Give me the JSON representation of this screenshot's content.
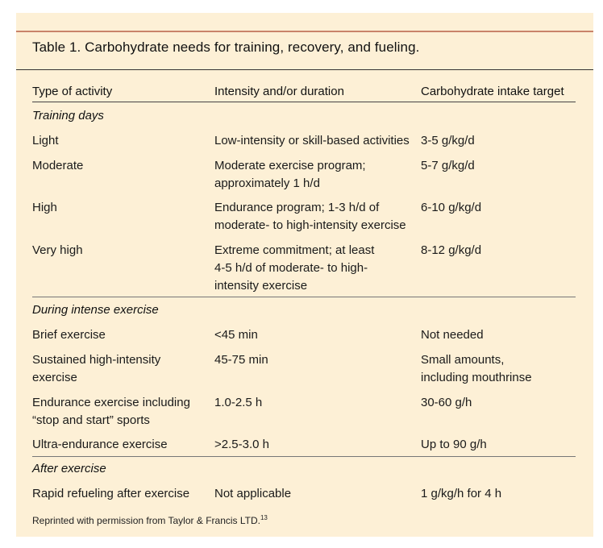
{
  "table": {
    "title": "Table 1. Carbohydrate needs for training, recovery, and fueling.",
    "columns": [
      "Type of activity",
      "Intensity and/or duration",
      "Carbohydrate intake target"
    ],
    "sections": [
      {
        "name": "Training days",
        "rows": [
          {
            "activity": "Light",
            "intensity": "Low-intensity or skill-based activities",
            "target": "3-5 g/kg/d"
          },
          {
            "activity": "Moderate",
            "intensity": "Moderate exercise program;\napproximately 1 h/d",
            "target": "5-7 g/kg/d"
          },
          {
            "activity": "High",
            "intensity": "Endurance program; 1-3 h/d of\nmoderate- to high-intensity exercise",
            "target": "6-10 g/kg/d"
          },
          {
            "activity": "Very high",
            "intensity": "Extreme commitment; at least\n4-5 h/d of moderate- to high-\nintensity exercise",
            "target": "8-12 g/kg/d"
          }
        ]
      },
      {
        "name": "During intense exercise",
        "rows": [
          {
            "activity": "Brief exercise",
            "intensity": "<45 min",
            "target": "Not needed"
          },
          {
            "activity": "Sustained high-intensity\nexercise",
            "intensity": "45-75 min",
            "target": "Small amounts,\nincluding mouthrinse"
          },
          {
            "activity": "Endurance exercise including\n“stop and start” sports",
            "intensity": "1.0-2.5 h",
            "target": "30-60 g/h"
          },
          {
            "activity": "Ultra-endurance exercise",
            "intensity": ">2.5-3.0 h",
            "target": "Up to 90 g/h"
          }
        ]
      },
      {
        "name": "After exercise",
        "rows": [
          {
            "activity": "Rapid refueling after exercise",
            "intensity": "Not applicable",
            "target": "1 g/kg/h for 4 h"
          }
        ]
      }
    ],
    "note": "Reprinted with permission from Taylor & Francis LTD.",
    "note_ref": "13"
  }
}
